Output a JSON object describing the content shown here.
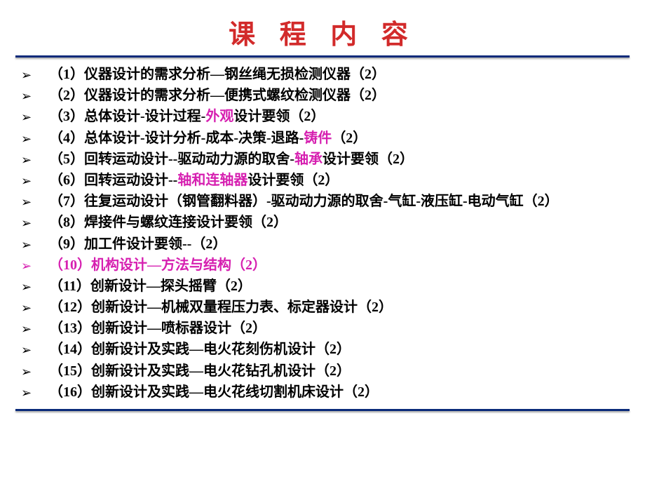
{
  "title": "课 程 内 容",
  "title_color": "#d22a2a",
  "rule_color": "#0a2a7a",
  "highlight_color": "#d61fb0",
  "items": [
    {
      "idx": "（1）",
      "segments": [
        {
          "t": "仪器设计的需求分析—钢丝绳无损检测仪器（2）",
          "hl": false
        }
      ],
      "highlight": false
    },
    {
      "idx": "（2）",
      "segments": [
        {
          "t": "仪器设计的需求分析—便携式螺纹检测仪器（2）",
          "hl": false
        }
      ],
      "highlight": false
    },
    {
      "idx": "（3）",
      "segments": [
        {
          "t": "总体设计-设计过程-",
          "hl": false
        },
        {
          "t": "外观",
          "hl": true
        },
        {
          "t": "设计要领（2）",
          "hl": false
        }
      ],
      "highlight": false
    },
    {
      "idx": "（4）",
      "segments": [
        {
          "t": "总体设计-设计分析-成本-决策-退路-",
          "hl": false
        },
        {
          "t": "铸件",
          "hl": true
        },
        {
          "t": "（2）",
          "hl": false
        }
      ],
      "highlight": false
    },
    {
      "idx": "（5）",
      "segments": [
        {
          "t": "回转运动设计--驱动动力源的取舍-",
          "hl": false
        },
        {
          "t": "轴承",
          "hl": true
        },
        {
          "t": "设计要领（2）",
          "hl": false
        }
      ],
      "highlight": false
    },
    {
      "idx": "（6）",
      "segments": [
        {
          "t": "回转运动设计--",
          "hl": false
        },
        {
          "t": "轴和连轴器",
          "hl": true
        },
        {
          "t": "设计要领（2）",
          "hl": false
        }
      ],
      "highlight": false
    },
    {
      "idx": "（7）",
      "segments": [
        {
          "t": "往复运动设计（钢管翻料器）-驱动动力源的取舍-气缸-液压缸-电动气缸（2）",
          "hl": false
        }
      ],
      "highlight": false
    },
    {
      "idx": "（8）",
      "segments": [
        {
          "t": "焊接件与螺纹连接设计要领（2）",
          "hl": false
        }
      ],
      "highlight": false
    },
    {
      "idx": "（9）",
      "segments": [
        {
          "t": "加工件设计要领--（2）",
          "hl": false
        }
      ],
      "highlight": false
    },
    {
      "idx": "（10）",
      "segments": [
        {
          "t": "机构设计—方法与结构（2）",
          "hl": true
        }
      ],
      "highlight": true
    },
    {
      "idx": "（11）",
      "segments": [
        {
          "t": "创新设计—探头摇臂（2）",
          "hl": false
        }
      ],
      "highlight": false
    },
    {
      "idx": "（12）",
      "segments": [
        {
          "t": "创新设计—机械双量程压力表、标定器设计（2）",
          "hl": false
        }
      ],
      "highlight": false
    },
    {
      "idx": "（13）",
      "segments": [
        {
          "t": "创新设计—喷标器设计（2）",
          "hl": false
        }
      ],
      "highlight": false
    },
    {
      "idx": "（14）",
      "segments": [
        {
          "t": "创新设计及实践—电火花刻伤机设计（2）",
          "hl": false
        }
      ],
      "highlight": false
    },
    {
      "idx": "（15）",
      "segments": [
        {
          "t": "创新设计及实践—电火花钻孔机设计（2）",
          "hl": false
        }
      ],
      "highlight": false
    },
    {
      "idx": "（16）",
      "segments": [
        {
          "t": "创新设计及实践—电火花线切割机床设计（2）",
          "hl": false
        }
      ],
      "highlight": false
    }
  ],
  "bullet_glyph": "➢"
}
